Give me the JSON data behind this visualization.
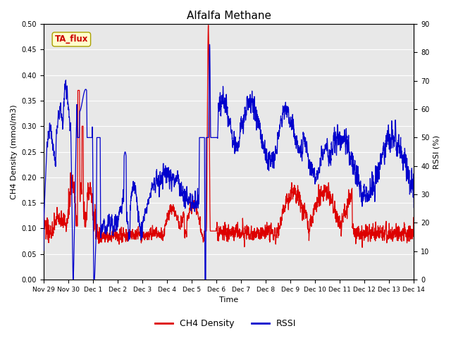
{
  "title": "Alfalfa Methane",
  "xlabel": "Time",
  "ylabel_left": "CH4 Density (mmol/m3)",
  "ylabel_right": "RSSI (%)",
  "ylim_left": [
    0.0,
    0.5
  ],
  "ylim_right": [
    0,
    90
  ],
  "yticks_left": [
    0.0,
    0.05,
    0.1,
    0.15,
    0.2,
    0.25,
    0.3,
    0.35,
    0.4,
    0.45,
    0.5
  ],
  "yticks_right": [
    0,
    10,
    20,
    30,
    40,
    50,
    60,
    70,
    80,
    90
  ],
  "annotation_text": "TA_flux",
  "annotation_color": "#cc0000",
  "annotation_bg": "#ffffcc",
  "annotation_border": "#aaa000",
  "line_ch4_color": "#dd0000",
  "line_rssi_color": "#0000cc",
  "bg_color": "#e8e8e8",
  "legend_ch4": "CH4 Density",
  "legend_rssi": "RSSI",
  "xtick_labels": [
    "Nov 29",
    "Nov 30",
    "Dec 1",
    "Dec 2",
    "Dec 3",
    "Dec 4",
    "Dec 5",
    "Dec 6",
    "Dec 7",
    "Dec 8",
    "Dec 9",
    "Dec 10",
    "Dec 11",
    "Dec 12",
    "Dec 13",
    "Dec 14"
  ],
  "xtick_positions": [
    0,
    1,
    2,
    3,
    4,
    5,
    6,
    7,
    8,
    9,
    10,
    11,
    12,
    13,
    14,
    15
  ]
}
